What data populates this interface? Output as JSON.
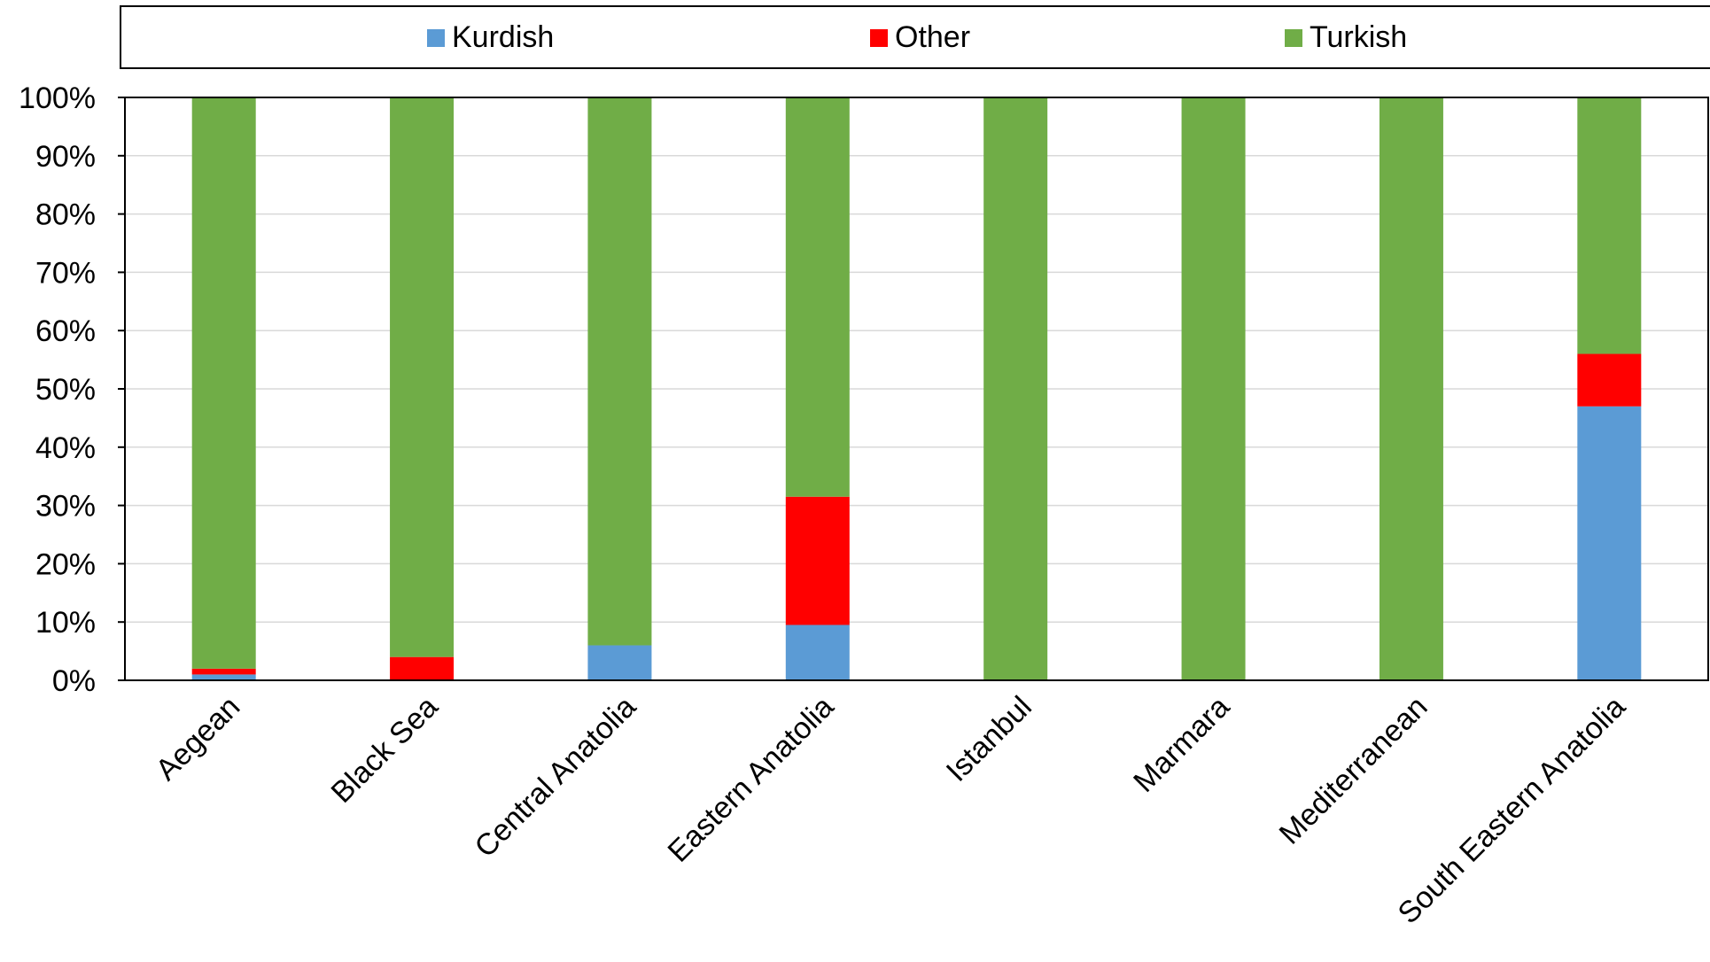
{
  "chart_data": {
    "type": "bar",
    "stacked": true,
    "normalized": true,
    "title": "",
    "xlabel": "",
    "ylabel": "",
    "categories": [
      "Aegean",
      "Black Sea",
      "Central Anatolia",
      "Eastern Anatolia",
      "Istanbul",
      "Marmara",
      "Mediterranean",
      "South Eastern Anatolia"
    ],
    "series": [
      {
        "name": "Kurdish",
        "color": "#5B9BD5",
        "values": [
          1,
          0,
          6,
          9.5,
          0,
          0,
          0,
          47
        ]
      },
      {
        "name": "Other",
        "color": "#FF0000",
        "values": [
          1,
          4,
          0,
          22,
          0,
          0,
          0,
          9
        ]
      },
      {
        "name": "Turkish",
        "color": "#70AD47",
        "values": [
          98,
          96,
          94,
          68.5,
          100,
          100,
          100,
          44
        ]
      }
    ],
    "ylim": [
      0,
      100
    ],
    "yticks": [
      "0%",
      "10%",
      "20%",
      "30%",
      "40%",
      "50%",
      "60%",
      "70%",
      "80%",
      "90%",
      "100%"
    ],
    "grid": true,
    "legend_position": "top"
  }
}
